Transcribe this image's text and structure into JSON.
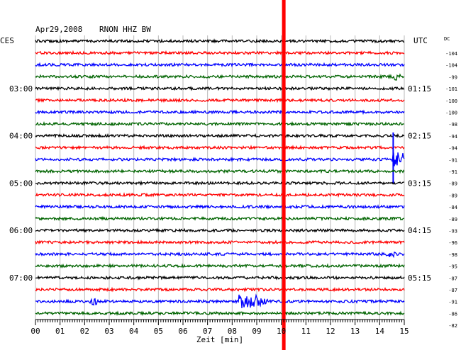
{
  "header": {
    "date": "Apr29,2008",
    "station": "RNON HHZ BW",
    "left_zone": "CES",
    "right_zone": "UTC",
    "dc_label": "DC"
  },
  "chart_data": {
    "type": "line",
    "xlabel": "Zeit [min]",
    "xlim": [
      0,
      15
    ],
    "x_ticks": [
      "00",
      "01",
      "02",
      "03",
      "04",
      "05",
      "06",
      "07",
      "08",
      "09",
      "10",
      "11",
      "12",
      "13",
      "14",
      "15"
    ],
    "trace_count": 24,
    "trace_colors": [
      "#000000",
      "#ff0000",
      "#0000ff",
      "#006400"
    ],
    "left_time_labels": [
      {
        "trace": 4,
        "label": "03:00"
      },
      {
        "trace": 8,
        "label": "04:00"
      },
      {
        "trace": 12,
        "label": "05:00"
      },
      {
        "trace": 16,
        "label": "06:00"
      },
      {
        "trace": 20,
        "label": "07:00"
      }
    ],
    "right_time_labels": [
      {
        "trace": 4,
        "label": "01:15"
      },
      {
        "trace": 8,
        "label": "02:15"
      },
      {
        "trace": 12,
        "label": "03:15"
      },
      {
        "trace": 16,
        "label": "04:15"
      },
      {
        "trace": 20,
        "label": "05:15"
      }
    ],
    "dc_values": [
      "-104",
      "-104",
      "-99",
      "-101",
      "-100",
      "-100",
      "-98",
      "-94",
      "-94",
      "-91",
      "-91",
      "-89",
      "-89",
      "-84",
      "-89",
      "-93",
      "-96",
      "-98",
      "-95",
      "-87",
      "-87",
      "-91",
      "-86",
      "-82"
    ],
    "events": [
      {
        "trace": 3,
        "minute": 14.7,
        "amplitude": "small"
      },
      {
        "trace": 10,
        "minute": 14.55,
        "amplitude": "large"
      },
      {
        "trace": 18,
        "minute": 14.5,
        "amplitude": "small"
      },
      {
        "trace": 22,
        "minute": 2.4,
        "amplitude": "small"
      },
      {
        "trace": 22,
        "minute": 8.3,
        "amplitude": "large"
      }
    ],
    "marker": {
      "minute": 10.1,
      "color": "#ff0000"
    }
  }
}
